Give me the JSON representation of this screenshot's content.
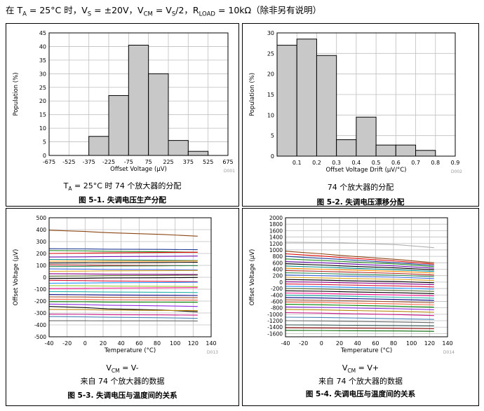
{
  "header": {
    "prefix": "在 T",
    "ta_sub": "A",
    "ta_rest": " = 25°C 时，V",
    "vs_sub": "S",
    "vs_rest": " = ±20V，V",
    "vcm_sub": "CM",
    "vcm_rest": " = V",
    "vs2_sub": "S",
    "vs2_rest": "/2，R",
    "rload_sub": "LOAD",
    "rload_rest": " = 10kΩ（除非另有说明）"
  },
  "colors": {
    "bar_fill": "#c8c8c8",
    "grid": "#bfbfbf",
    "axis": "#000000",
    "code_text": "#999999"
  },
  "figures": [
    {
      "chart_data": {
        "type": "bar",
        "code": "D001",
        "xlabel": "Offset Voltage (µV)",
        "ylabel": "Population (%)",
        "bin_edges": [
          -675,
          -525,
          -375,
          -225,
          -75,
          75,
          225,
          375,
          525,
          675
        ],
        "values": [
          0,
          0,
          7,
          22,
          40.5,
          30,
          5.5,
          1.5,
          0
        ],
        "xticks": [
          -675,
          -525,
          -375,
          -225,
          -75,
          75,
          225,
          375,
          525,
          675
        ],
        "yticks": [
          0,
          5,
          10,
          15,
          20,
          25,
          30,
          35,
          40,
          45
        ],
        "xlim": [
          -675,
          675
        ],
        "ylim": [
          0,
          45
        ]
      },
      "condition_prefix": "T",
      "condition_sub": "A",
      "condition_rest": " = 25°C 时 74 个放大器的分配",
      "condition_line2": "",
      "caption": "图 5-1. 失调电压生产分配"
    },
    {
      "chart_data": {
        "type": "bar",
        "code": "D002",
        "xlabel": "Offset Voltage Drift (µV/°C)",
        "ylabel": "Population (%)",
        "bin_edges": [
          0,
          0.1,
          0.2,
          0.3,
          0.4,
          0.5,
          0.6,
          0.7,
          0.8,
          0.9
        ],
        "values": [
          27,
          28.5,
          24.5,
          4,
          9.5,
          2.7,
          2.7,
          1.4,
          0
        ],
        "xticks": [
          0.1,
          0.2,
          0.3,
          0.4,
          0.5,
          0.6,
          0.7,
          0.8,
          0.9
        ],
        "yticks": [
          0,
          5,
          10,
          15,
          20,
          25,
          30
        ],
        "xlim": [
          0,
          0.9
        ],
        "ylim": [
          0,
          30
        ]
      },
      "condition_prefix": "",
      "condition_sub": "",
      "condition_rest": "74 个放大器的分配",
      "condition_line2": "",
      "caption": "图 5-2. 失调电压漂移分配"
    },
    {
      "chart_data": {
        "type": "line",
        "code": "D013",
        "xlabel": "Temperature (°C)",
        "ylabel": "Offset Voltage (µV)",
        "x": [
          -40,
          0,
          25,
          85,
          125
        ],
        "xticks": [
          -40,
          -20,
          0,
          20,
          40,
          60,
          80,
          100,
          120,
          140
        ],
        "yticks": [
          -500,
          -400,
          -300,
          -200,
          -100,
          0,
          100,
          200,
          300,
          400,
          500
        ],
        "xlim": [
          -40,
          140
        ],
        "ylim": [
          -500,
          500
        ],
        "series": [
          {
            "values": [
              395,
              385,
              375,
              360,
              345
            ],
            "color": "#8b4513"
          },
          {
            "values": [
              240,
              238,
              236,
              234,
              232
            ],
            "color": "#1f3a93"
          },
          {
            "values": [
              225,
              222,
              218,
              214,
              210
            ],
            "color": "#228b22"
          },
          {
            "values": [
              200,
              203,
              205,
              208,
              210
            ],
            "color": "#e00000"
          },
          {
            "values": [
              170,
              172,
              174,
              176,
              178
            ],
            "color": "#6a0dad"
          },
          {
            "values": [
              150,
              148,
              146,
              143,
              140
            ],
            "color": "#008b8b"
          },
          {
            "values": [
              135,
              135,
              136,
              136,
              137
            ],
            "color": "#ff8c00"
          },
          {
            "values": [
              120,
              121,
              122,
              124,
              126
            ],
            "color": "#000000"
          },
          {
            "values": [
              105,
              103,
              101,
              99,
              97
            ],
            "color": "#b22222"
          },
          {
            "values": [
              90,
              92,
              94,
              96,
              98
            ],
            "color": "#2e8b57"
          },
          {
            "values": [
              70,
              68,
              66,
              64,
              62
            ],
            "color": "#4169e1"
          },
          {
            "values": [
              50,
              52,
              54,
              55,
              57
            ],
            "color": "#daa520"
          },
          {
            "values": [
              30,
              28,
              26,
              25,
              23
            ],
            "color": "#8b008b"
          },
          {
            "values": [
              10,
              12,
              14,
              16,
              18
            ],
            "color": "#556b2f"
          },
          {
            "values": [
              -10,
              -8,
              -6,
              -4,
              -2
            ],
            "color": "#000000"
          },
          {
            "values": [
              -25,
              -28,
              -31,
              -34,
              -37
            ],
            "color": "#dc143c"
          },
          {
            "values": [
              -50,
              -48,
              -46,
              -44,
              -42
            ],
            "color": "#1e90ff"
          },
          {
            "values": [
              -70,
              -72,
              -74,
              -76,
              -78
            ],
            "color": "#9acd32"
          },
          {
            "values": [
              -95,
              -93,
              -91,
              -89,
              -87
            ],
            "color": "#ff1493"
          },
          {
            "values": [
              -120,
              -122,
              -124,
              -126,
              -128
            ],
            "color": "#20b2aa"
          },
          {
            "values": [
              -145,
              -147,
              -149,
              -151,
              -153
            ],
            "color": "#000080"
          },
          {
            "values": [
              -165,
              -166,
              -168,
              -170,
              -172
            ],
            "color": "#a0522d"
          },
          {
            "values": [
              -185,
              -186,
              -188,
              -190,
              -192
            ],
            "color": "#ff6347"
          },
          {
            "values": [
              -205,
              -206,
              -208,
              -209,
              -210
            ],
            "color": "#008000"
          },
          {
            "values": [
              -225,
              -230,
              -235,
              -240,
              -245
            ],
            "color": "#8a2be2"
          },
          {
            "values": [
              -245,
              -255,
              -265,
              -275,
              -290
            ],
            "color": "#000000"
          },
          {
            "values": [
              -270,
              -272,
              -275,
              -278,
              -280
            ],
            "color": "#b8860b"
          },
          {
            "values": [
              -310,
              -312,
              -314,
              -316,
              -318
            ],
            "color": "#c71585"
          },
          {
            "values": [
              -330,
              -333,
              -336,
              -340,
              -345
            ],
            "color": "#4682b4"
          },
          {
            "values": [
              -365,
              -365,
              -366,
              -366,
              -367
            ],
            "color": "#696969"
          }
        ]
      },
      "condition_prefix": "V",
      "condition_sub": "CM",
      "condition_rest": " = V-",
      "condition_line2": "来自 74 个放大器的数据",
      "caption": "图 5-3. 失调电压与温度间的关系"
    },
    {
      "chart_data": {
        "type": "line",
        "code": "D014",
        "xlabel": "Temperature (°C)",
        "ylabel": "Offset Voltage (µV)",
        "x": [
          -40,
          0,
          25,
          85,
          125
        ],
        "xticks": [
          -40,
          -20,
          0,
          20,
          40,
          60,
          80,
          100,
          120,
          140
        ],
        "yticks": [
          -1600,
          -1400,
          -1200,
          -1000,
          -800,
          -600,
          -400,
          -200,
          0,
          200,
          400,
          600,
          800,
          1000,
          1200,
          1400,
          1600,
          1800,
          2000
        ],
        "xlim": [
          -40,
          140
        ],
        "ylim": [
          -1700,
          2000
        ],
        "series": [
          {
            "values": [
              1240,
              1230,
              1220,
              1160,
              1070
            ],
            "color": "#b0b0b0"
          },
          {
            "values": [
              960,
              880,
              820,
              700,
              600
            ],
            "color": "#8b4513"
          },
          {
            "values": [
              880,
              810,
              760,
              650,
              560
            ],
            "color": "#e00000"
          },
          {
            "values": [
              800,
              740,
              700,
              600,
              520
            ],
            "color": "#1f3a93"
          },
          {
            "values": [
              720,
              670,
              640,
              560,
              480
            ],
            "color": "#228b22"
          },
          {
            "values": [
              640,
              600,
              570,
              500,
              430
            ],
            "color": "#6a0dad"
          },
          {
            "values": [
              570,
              530,
              500,
              440,
              380
            ],
            "color": "#000000"
          },
          {
            "values": [
              500,
              465,
              440,
              380,
              330
            ],
            "color": "#008b8b"
          },
          {
            "values": [
              430,
              400,
              380,
              330,
              280
            ],
            "color": "#ff8c00"
          },
          {
            "values": [
              360,
              335,
              315,
              270,
              220
            ],
            "color": "#b22222"
          },
          {
            "values": [
              290,
              270,
              250,
              210,
              170
            ],
            "color": "#2e8b57"
          },
          {
            "values": [
              220,
              200,
              185,
              150,
              110
            ],
            "color": "#4169e1"
          },
          {
            "values": [
              150,
              130,
              115,
              85,
              50
            ],
            "color": "#daa520"
          },
          {
            "values": [
              80,
              60,
              45,
              15,
              -20
            ],
            "color": "#000000"
          },
          {
            "values": [
              10,
              -5,
              -20,
              -50,
              -80
            ],
            "color": "#8b008b"
          },
          {
            "values": [
              -60,
              -75,
              -90,
              -120,
              -150
            ],
            "color": "#dc143c"
          },
          {
            "values": [
              -130,
              -145,
              -160,
              -190,
              -220
            ],
            "color": "#1e90ff"
          },
          {
            "values": [
              -200,
              -215,
              -230,
              -260,
              -290
            ],
            "color": "#556b2f"
          },
          {
            "values": [
              -270,
              -285,
              -300,
              -330,
              -360
            ],
            "color": "#000000"
          },
          {
            "values": [
              -340,
              -355,
              -370,
              -400,
              -430
            ],
            "color": "#ff1493"
          },
          {
            "values": [
              -410,
              -425,
              -440,
              -470,
              -500
            ],
            "color": "#20b2aa"
          },
          {
            "values": [
              -480,
              -495,
              -510,
              -540,
              -570
            ],
            "color": "#000080"
          },
          {
            "values": [
              -550,
              -565,
              -580,
              -610,
              -640
            ],
            "color": "#a0522d"
          },
          {
            "values": [
              -620,
              -635,
              -650,
              -680,
              -710
            ],
            "color": "#ff6347"
          },
          {
            "values": [
              -690,
              -705,
              -720,
              -750,
              -780
            ],
            "color": "#008000"
          },
          {
            "values": [
              -770,
              -785,
              -800,
              -830,
              -860
            ],
            "color": "#8a2be2"
          },
          {
            "values": [
              -850,
              -865,
              -880,
              -910,
              -940
            ],
            "color": "#b8860b"
          },
          {
            "values": [
              -950,
              -965,
              -980,
              -1010,
              -1040
            ],
            "color": "#c71585"
          },
          {
            "values": [
              -1090,
              -1100,
              -1110,
              -1140,
              -1160
            ],
            "color": "#4682b4"
          },
          {
            "values": [
              -1200,
              -1210,
              -1220,
              -1240,
              -1260
            ],
            "color": "#696969"
          },
          {
            "values": [
              -1330,
              -1335,
              -1340,
              -1350,
              -1360
            ],
            "color": "#2f4f4f"
          },
          {
            "values": [
              -1420,
              -1425,
              -1430,
              -1440,
              -1450
            ],
            "color": "#8b0000"
          },
          {
            "values": [
              -1500,
              -1505,
              -1510,
              -1520,
              -1530
            ],
            "color": "#006400"
          }
        ]
      },
      "condition_prefix": "V",
      "condition_sub": "CM",
      "condition_rest": " = V+",
      "condition_line2": "来自 74 个放大器的数据",
      "caption": "图 5-4. 失调电压与温度间的关系"
    }
  ]
}
